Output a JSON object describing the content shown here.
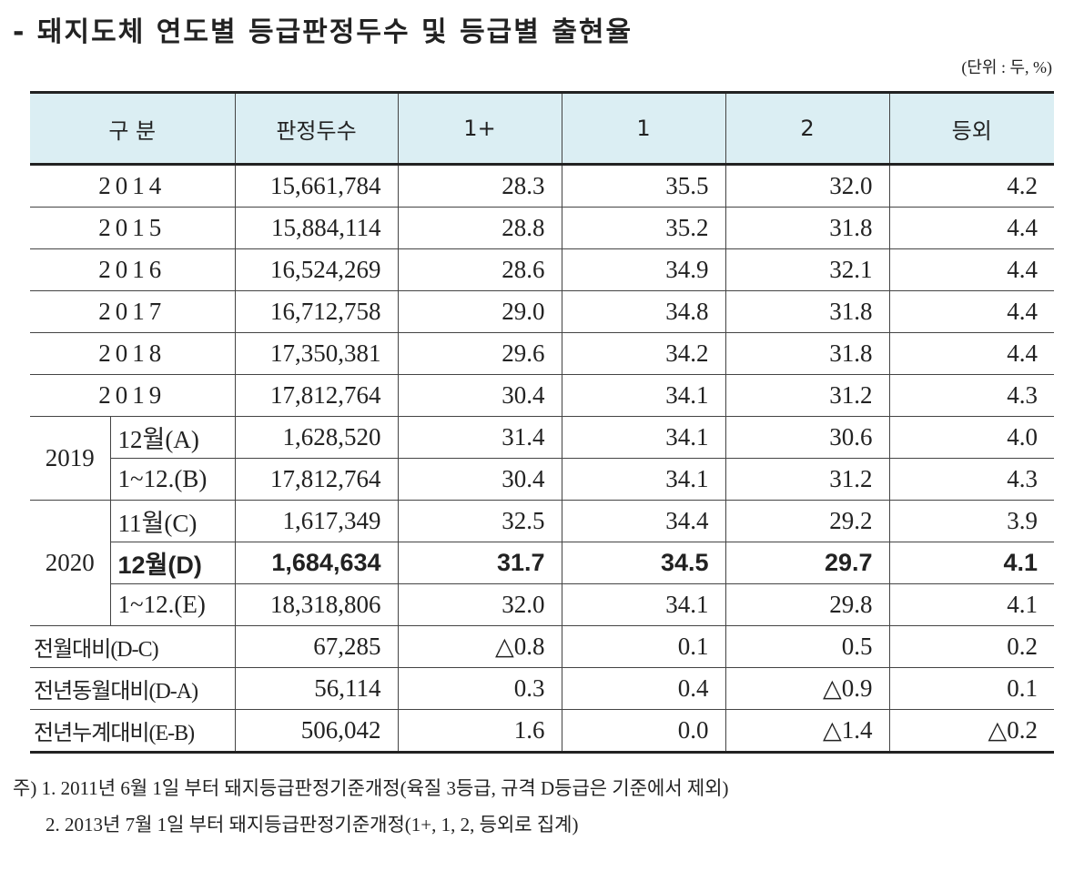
{
  "title": "- 돼지도체 연도별 등급판정두수 및 등급별 출현율",
  "unit": "(단위 : 두, %)",
  "table": {
    "header": [
      "구 분",
      "판정두수",
      "1+",
      "1",
      "2",
      "등외"
    ],
    "rows": [
      {
        "label": "2014",
        "cells": [
          "15,661,784",
          "28.3",
          "35.5",
          "32.0",
          "4.2"
        ]
      },
      {
        "label": "2015",
        "cells": [
          "15,884,114",
          "28.8",
          "35.2",
          "31.8",
          "4.4"
        ]
      },
      {
        "label": "2016",
        "cells": [
          "16,524,269",
          "28.6",
          "34.9",
          "32.1",
          "4.4"
        ]
      },
      {
        "label": "2017",
        "cells": [
          "16,712,758",
          "29.0",
          "34.8",
          "31.8",
          "4.4"
        ]
      },
      {
        "label": "2018",
        "cells": [
          "17,350,381",
          "29.6",
          "34.2",
          "31.8",
          "4.4"
        ]
      },
      {
        "label": "2019",
        "cells": [
          "17,812,764",
          "30.4",
          "34.1",
          "31.2",
          "4.3"
        ]
      }
    ],
    "groups": [
      {
        "label": "2019",
        "rows": [
          {
            "label": "12월(A)",
            "cells": [
              "1,628,520",
              "31.4",
              "34.1",
              "30.6",
              "4.0"
            ]
          },
          {
            "label": "1~12.(B)",
            "cells": [
              "17,812,764",
              "30.4",
              "34.1",
              "31.2",
              "4.3"
            ]
          }
        ]
      },
      {
        "label": "2020",
        "rows": [
          {
            "label": "11월(C)",
            "cells": [
              "1,617,349",
              "32.5",
              "34.4",
              "29.2",
              "3.9"
            ]
          },
          {
            "label": "12월(D)",
            "cells": [
              "1,684,634",
              "31.7",
              "34.5",
              "29.7",
              "4.1"
            ],
            "bold": true
          },
          {
            "label": "1~12.(E)",
            "cells": [
              "18,318,806",
              "32.0",
              "34.1",
              "29.8",
              "4.1"
            ]
          }
        ]
      }
    ],
    "diff_rows": [
      {
        "label": "전월대비(D-C)",
        "cells": [
          "67,285",
          "△0.8",
          "0.1",
          "0.5",
          "0.2"
        ]
      },
      {
        "label": "전년동월대비(D-A)",
        "cells": [
          "56,114",
          "0.3",
          "0.4",
          "△0.9",
          "0.1"
        ]
      },
      {
        "label": "전년누계대비(E-B)",
        "cells": [
          "506,042",
          "1.6",
          "0.0",
          "△1.4",
          "△0.2"
        ]
      }
    ]
  },
  "notes": [
    "주) 1. 2011년 6월 1일 부터 돼지등급판정기준개정(육질 3등급, 규격 D등급은 기준에서 제외)",
    "2. 2013년 7월 1일 부터 돼지등급판정기준개정(1+, 1, 2, 등외로 집계)"
  ]
}
